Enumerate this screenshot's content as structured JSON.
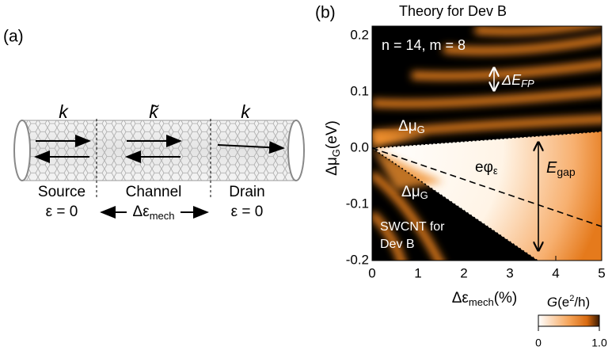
{
  "panel_a": {
    "label": "(a)",
    "wavevectors": [
      "k",
      "k̃",
      "k"
    ],
    "regions": [
      "Source",
      "Channel",
      "Drain"
    ],
    "strain_left": "ε = 0",
    "strain_mid": {
      "main": "Δε",
      "sub": "mech"
    },
    "strain_right": "ε = 0"
  },
  "chart_data": {
    "type": "heatmap",
    "panel_label": "(b)",
    "title": "Theory for Dev B",
    "xlabel": {
      "main": "Δε",
      "sub": "mech",
      "unit": "(%)"
    },
    "ylabel": {
      "main": "Δμ",
      "sub": "G",
      "unit": "(eV)"
    },
    "xlim": [
      0,
      5
    ],
    "ylim": [
      -0.2,
      0.217
    ],
    "xticks": [
      0,
      1,
      2,
      3,
      4,
      5
    ],
    "yticks": [
      0.2,
      0.1,
      {
        "value": 0,
        "label": "0.0"
      },
      -0.1,
      -0.2
    ],
    "annotations": {
      "indices": "n = 14, m = 8",
      "fp": {
        "main": "ΔE",
        "sub": "FP"
      },
      "mu_upper": {
        "main": "Δμ",
        "sub": "G"
      },
      "mu_lower": {
        "main": "Δμ",
        "sub": "G"
      },
      "gap": {
        "main": "E",
        "sub": "gap"
      },
      "phi": {
        "main": "eφ",
        "sub": "ε"
      },
      "device": [
        "SWCNT for",
        "Dev B"
      ]
    },
    "colorbar": {
      "label": {
        "main": "G",
        "unit": "(e",
        "sup": "2",
        "tail": "/h)"
      },
      "lim": [
        0,
        1
      ],
      "ticks": [
        0,
        {
          "value": 1,
          "label": "1.0"
        }
      ]
    }
  }
}
